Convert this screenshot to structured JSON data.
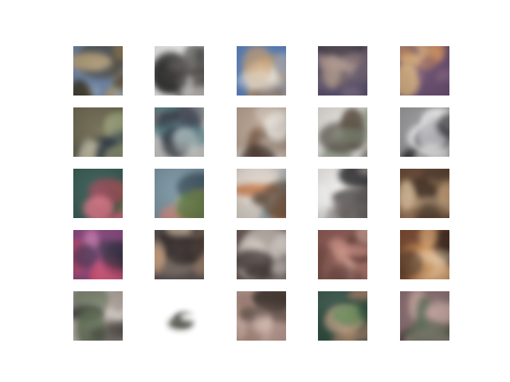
{
  "figure": {
    "background": "#ffffff",
    "rows": 5,
    "cols": 5,
    "tiles": [
      {
        "name": "tile-r1-c1",
        "bg": "#6f86a8",
        "colors": [
          "#8e7650",
          "#3c3524",
          "#b8a27a",
          "#a9c2de"
        ]
      },
      {
        "name": "tile-r1-c2",
        "bg": "#f1f1ef",
        "colors": [
          "#1b1b1b",
          "#6a6560",
          "#ffffff",
          "#3a3a3a"
        ]
      },
      {
        "name": "tile-r1-c3",
        "bg": "#5d84c0",
        "colors": [
          "#c99f6f",
          "#f1efe8",
          "#8a6a50",
          "#9bb6de"
        ]
      },
      {
        "name": "tile-r1-c4",
        "bg": "#5b5270",
        "colors": [
          "#7b6a74",
          "#b29a8f",
          "#3a3444",
          "#8d7d8e"
        ]
      },
      {
        "name": "tile-r1-c5",
        "bg": "#6b4f72",
        "colors": [
          "#e8a061",
          "#f7d089",
          "#8e6a85",
          "#4a3557"
        ]
      },
      {
        "name": "tile-r2-c1",
        "bg": "#6f6a52",
        "colors": [
          "#2c3640",
          "#9ba17a",
          "#c8c2a6",
          "#4e5a5c"
        ]
      },
      {
        "name": "tile-r2-c2",
        "bg": "#c9c9c6",
        "colors": [
          "#1c2430",
          "#5d8a90",
          "#e8e8e6",
          "#3e4656"
        ]
      },
      {
        "name": "tile-r2-c3",
        "bg": "#b8a492",
        "colors": [
          "#f1ece4",
          "#3a2c26",
          "#7a5a48",
          "#d6c8ba"
        ]
      },
      {
        "name": "tile-r2-c4",
        "bg": "#e4e1dc",
        "colors": [
          "#4a4238",
          "#8c9a84",
          "#ffffff",
          "#6e5e50"
        ]
      },
      {
        "name": "tile-r2-c5",
        "bg": "#9a9a9c",
        "colors": [
          "#ffffff",
          "#1a1a1c",
          "#5c5c60",
          "#c4c4c8"
        ]
      },
      {
        "name": "tile-r3-c1",
        "bg": "#3a5e56",
        "colors": [
          "#a64a5a",
          "#e07a8a",
          "#4c8a3c",
          "#2a3a40"
        ]
      },
      {
        "name": "tile-r3-c2",
        "bg": "#7e98a6",
        "colors": [
          "#c78f84",
          "#5b7a3e",
          "#e4d2c2",
          "#3e5260"
        ]
      },
      {
        "name": "tile-r3-c3",
        "bg": "#d8d0c8",
        "colors": [
          "#c2662e",
          "#5e4a3a",
          "#8aa0a8",
          "#f0e6dc"
        ]
      },
      {
        "name": "tile-r3-c4",
        "bg": "#f2f0ee",
        "colors": [
          "#2a2a2c",
          "#6a6462",
          "#b4aaa4",
          "#ffffff"
        ]
      },
      {
        "name": "tile-r3-c5",
        "bg": "#6a4a36",
        "colors": [
          "#c9a27a",
          "#3a2a20",
          "#e0c49e",
          "#8a6a4e"
        ]
      },
      {
        "name": "tile-r4-c1",
        "bg": "#8a4a82",
        "colors": [
          "#d24a6a",
          "#2a2c3a",
          "#e08ac0",
          "#5a3a5c"
        ]
      },
      {
        "name": "tile-r4-c2",
        "bg": "#5a5050",
        "colors": [
          "#d8a882",
          "#2e2624",
          "#9a8a7c",
          "#e8cfb4"
        ]
      },
      {
        "name": "tile-r4-c3",
        "bg": "#6a5a56",
        "colors": [
          "#d8cfc8",
          "#3a302e",
          "#9a8e88",
          "#f2ece6"
        ]
      },
      {
        "name": "tile-r4-c4",
        "bg": "#8a5a52",
        "colors": [
          "#c48a7e",
          "#5a3632",
          "#e2b6a8",
          "#6e443e"
        ]
      },
      {
        "name": "tile-r4-c5",
        "bg": "#7a4a32",
        "colors": [
          "#e4b07a",
          "#2a1c18",
          "#c88a52",
          "#f0d4b0"
        ]
      },
      {
        "name": "tile-r5-c1",
        "bg": "#c4bab6",
        "colors": [
          "#3a3a38",
          "#8a7a70",
          "#e4dcd6",
          "#5a6a4e"
        ]
      },
      {
        "name": "tile-r5-c2",
        "bg": "#ffffff",
        "colors": [
          "#1e1e1c",
          "#5a5a50",
          "#ffffff",
          "#8c8c84"
        ]
      },
      {
        "name": "tile-r5-c3",
        "bg": "#b89a90",
        "colors": [
          "#5a4a42",
          "#e4cac0",
          "#3a2e2a",
          "#9a7a6c"
        ]
      },
      {
        "name": "tile-r5-c4",
        "bg": "#3e5a4e",
        "colors": [
          "#c88a72",
          "#2a4a3a",
          "#e4b49a",
          "#6a8a5a"
        ]
      },
      {
        "name": "tile-r5-c5",
        "bg": "#8a6e72",
        "colors": [
          "#5a6a54",
          "#c8a8a0",
          "#3a3a36",
          "#a88a88"
        ]
      }
    ]
  }
}
